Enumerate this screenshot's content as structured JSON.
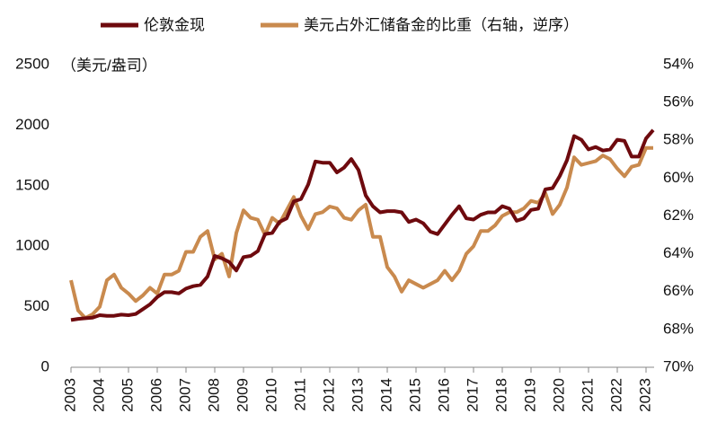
{
  "chart_data": {
    "type": "line",
    "y_unit_label": "（美元/盎司）",
    "x": [
      2003,
      2003.25,
      2003.5,
      2003.75,
      2004,
      2004.25,
      2004.5,
      2004.75,
      2005,
      2005.25,
      2005.5,
      2005.75,
      2006,
      2006.25,
      2006.5,
      2006.75,
      2007,
      2007.25,
      2007.5,
      2007.75,
      2008,
      2008.25,
      2008.5,
      2008.75,
      2009,
      2009.25,
      2009.5,
      2009.75,
      2010,
      2010.25,
      2010.5,
      2010.75,
      2011,
      2011.25,
      2011.5,
      2011.75,
      2012,
      2012.25,
      2012.5,
      2012.75,
      2013,
      2013.25,
      2013.5,
      2013.75,
      2014,
      2014.25,
      2014.5,
      2014.75,
      2015,
      2015.25,
      2015.5,
      2015.75,
      2016,
      2016.25,
      2016.5,
      2016.75,
      2017,
      2017.25,
      2017.5,
      2017.75,
      2018,
      2018.25,
      2018.5,
      2018.75,
      2019,
      2019.25,
      2019.5,
      2019.75,
      2020,
      2020.25,
      2020.5,
      2020.75,
      2021,
      2021.25,
      2021.5,
      2021.75,
      2022,
      2022.25,
      2022.5,
      2022.75,
      2023,
      2023.25
    ],
    "xlim": [
      2003,
      2023.25
    ],
    "xticks": [
      2003,
      2004,
      2005,
      2006,
      2007,
      2008,
      2009,
      2010,
      2011,
      2012,
      2013,
      2014,
      2015,
      2016,
      2017,
      2018,
      2019,
      2020,
      2021,
      2022,
      2023
    ],
    "ylim": [
      0,
      2500
    ],
    "yticks": [
      0,
      500,
      1000,
      1500,
      2000,
      2500
    ],
    "y2lim": [
      54,
      70
    ],
    "y2_reversed": true,
    "y2ticks": [
      {
        "value": 54,
        "label": "54%"
      },
      {
        "value": 56,
        "label": "56%"
      },
      {
        "value": 58,
        "label": "58%"
      },
      {
        "value": 60,
        "label": "60%"
      },
      {
        "value": 62,
        "label": "62%"
      },
      {
        "value": 64,
        "label": "64%"
      },
      {
        "value": 66,
        "label": "66%"
      },
      {
        "value": 68,
        "label": "68%"
      },
      {
        "value": 70,
        "label": "70%"
      }
    ],
    "series": [
      {
        "name": "伦敦金现",
        "color": "#6e0a0e",
        "values": [
          390,
          400,
          405,
          410,
          430,
          425,
          425,
          435,
          430,
          440,
          480,
          520,
          580,
          620,
          620,
          610,
          650,
          670,
          680,
          750,
          920,
          900,
          870,
          800,
          910,
          920,
          960,
          1100,
          1110,
          1200,
          1230,
          1370,
          1390,
          1510,
          1700,
          1690,
          1690,
          1610,
          1650,
          1720,
          1630,
          1420,
          1330,
          1280,
          1290,
          1290,
          1280,
          1200,
          1220,
          1190,
          1120,
          1100,
          1180,
          1260,
          1330,
          1230,
          1220,
          1260,
          1280,
          1280,
          1330,
          1310,
          1210,
          1230,
          1300,
          1310,
          1470,
          1480,
          1580,
          1710,
          1910,
          1880,
          1800,
          1820,
          1790,
          1800,
          1880,
          1870,
          1740,
          1740,
          1890,
          1960
        ]
      },
      {
        "name": "美元占外汇储备金的比重（右轴，逆序）",
        "color": "#c98a4e",
        "axis": "y2",
        "values": [
          65.4,
          67,
          67.4,
          67.2,
          66.8,
          65.4,
          65.1,
          65.8,
          66.1,
          66.5,
          66.2,
          65.8,
          66.1,
          65.1,
          65.1,
          64.9,
          63.9,
          63.9,
          63.1,
          62.8,
          64.3,
          64.0,
          65.2,
          62.9,
          61.7,
          62.1,
          62.2,
          63.0,
          62.1,
          62.4,
          61.7,
          61.0,
          62.0,
          62.7,
          61.9,
          61.8,
          61.5,
          61.6,
          62.1,
          62.2,
          61.7,
          61.4,
          63.1,
          63.1,
          64.7,
          65.2,
          66.0,
          65.4,
          65.6,
          65.8,
          65.6,
          65.4,
          64.9,
          65.4,
          64.9,
          64.0,
          63.6,
          62.8,
          62.8,
          62.5,
          62.0,
          61.8,
          61.8,
          61.6,
          61.2,
          61.3,
          60.8,
          61.9,
          61.4,
          60.5,
          58.9,
          59.3,
          59.2,
          59.1,
          58.8,
          59.0,
          59.5,
          59.9,
          59.4,
          59.3,
          58.4,
          58.4
        ]
      }
    ]
  }
}
